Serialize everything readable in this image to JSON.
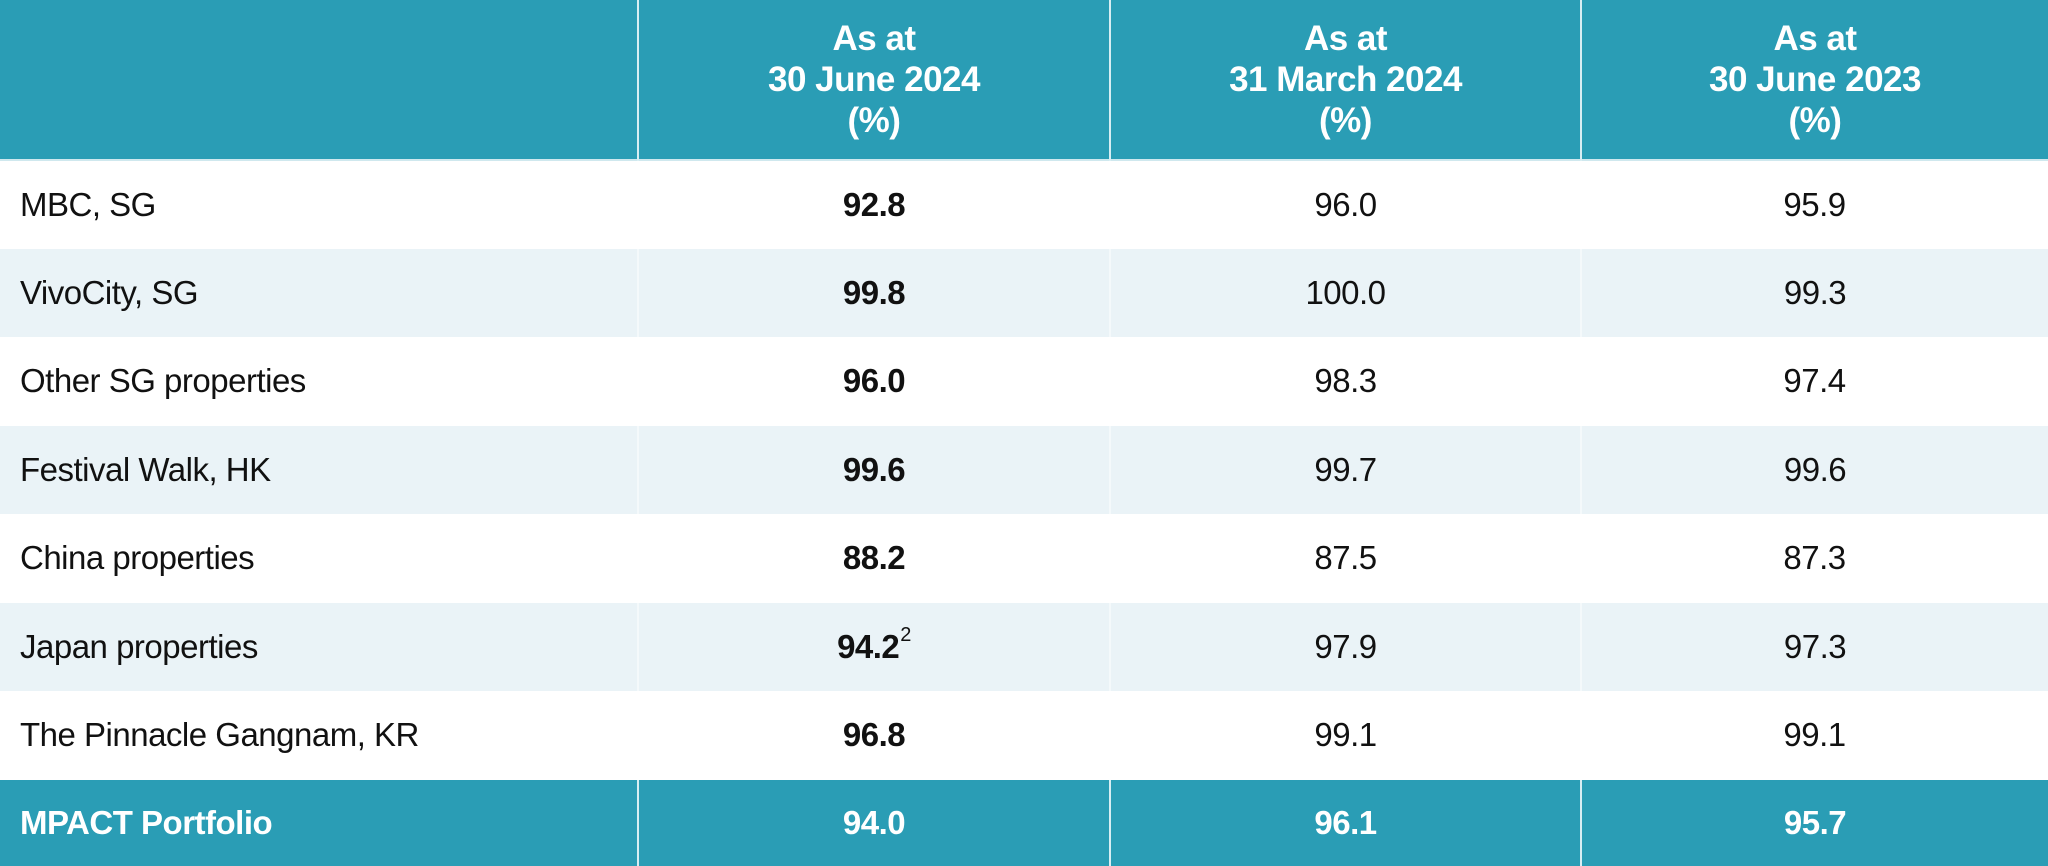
{
  "header": {
    "columns": [
      {
        "line1": "As at",
        "line2": "30 June 2024",
        "line3": "(%)"
      },
      {
        "line1": "As at",
        "line2": "31 March 2024",
        "line3": "(%)"
      },
      {
        "line1": "As at",
        "line2": "30 June 2023",
        "line3": "(%)"
      }
    ]
  },
  "rows": [
    {
      "label": "MBC, SG",
      "v1": "92.8",
      "v2": "96.0",
      "v3": "95.9"
    },
    {
      "label": "VivoCity, SG",
      "v1": "99.8",
      "v2": "100.0",
      "v3": "99.3"
    },
    {
      "label": "Other SG properties",
      "v1": "96.0",
      "v2": "98.3",
      "v3": "97.4"
    },
    {
      "label": "Festival Walk, HK",
      "v1": "99.6",
      "v2": "99.7",
      "v3": "99.6"
    },
    {
      "label": "China properties",
      "v1": "88.2",
      "v2": "87.5",
      "v3": "87.3"
    },
    {
      "label": "Japan properties",
      "v1": "94.2",
      "v1_footnote": "2",
      "v2": "97.9",
      "v3": "97.3"
    },
    {
      "label": "The Pinnacle Gangnam, KR",
      "v1": "96.8",
      "v2": "99.1",
      "v3": "99.1"
    }
  ],
  "total": {
    "label": "MPACT Portfolio",
    "v1": "94.0",
    "v2": "96.1",
    "v3": "95.7"
  },
  "colors": {
    "header_bg": "#2A9DB5",
    "stripe_bg": "#EAF3F7"
  }
}
